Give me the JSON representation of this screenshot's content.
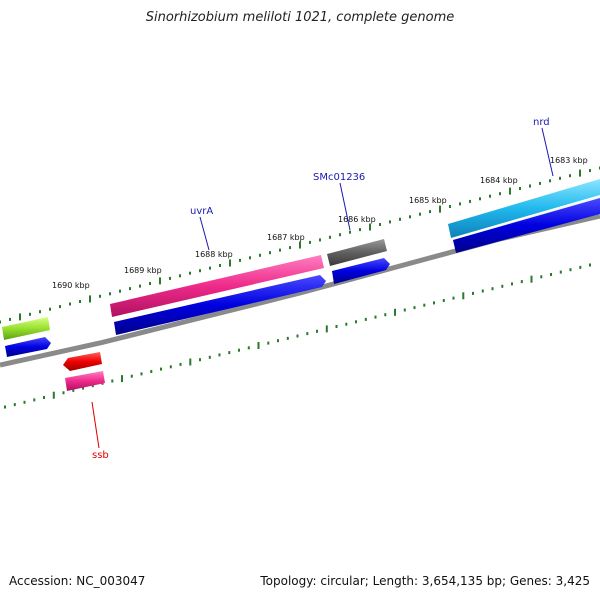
{
  "title": "Sinorhizobium meliloti 1021, complete genome",
  "footer": {
    "accession": "Accession: NC_003047",
    "stats": "Topology: circular; Length: 3,654,135 bp; Genes: 3,425"
  },
  "colors": {
    "backbone": "#8a8a8a",
    "tick": "#2a7a2a",
    "forward_cds": "#0000e6",
    "label_blue": "#1a1ab0",
    "label_red": "#e00000"
  },
  "ticks": [
    {
      "label": "1690 kbp"
    },
    {
      "label": "1689 kbp"
    },
    {
      "label": "1688 kbp"
    },
    {
      "label": "1687 kbp"
    },
    {
      "label": "1686 kbp"
    },
    {
      "label": "1685 kbp"
    },
    {
      "label": "1684 kbp"
    },
    {
      "label": "1683 kbp"
    }
  ],
  "gene_labels": [
    {
      "name": "uvrA"
    },
    {
      "name": "SMc01236"
    },
    {
      "name": "nrd"
    },
    {
      "name": "ssb"
    }
  ]
}
